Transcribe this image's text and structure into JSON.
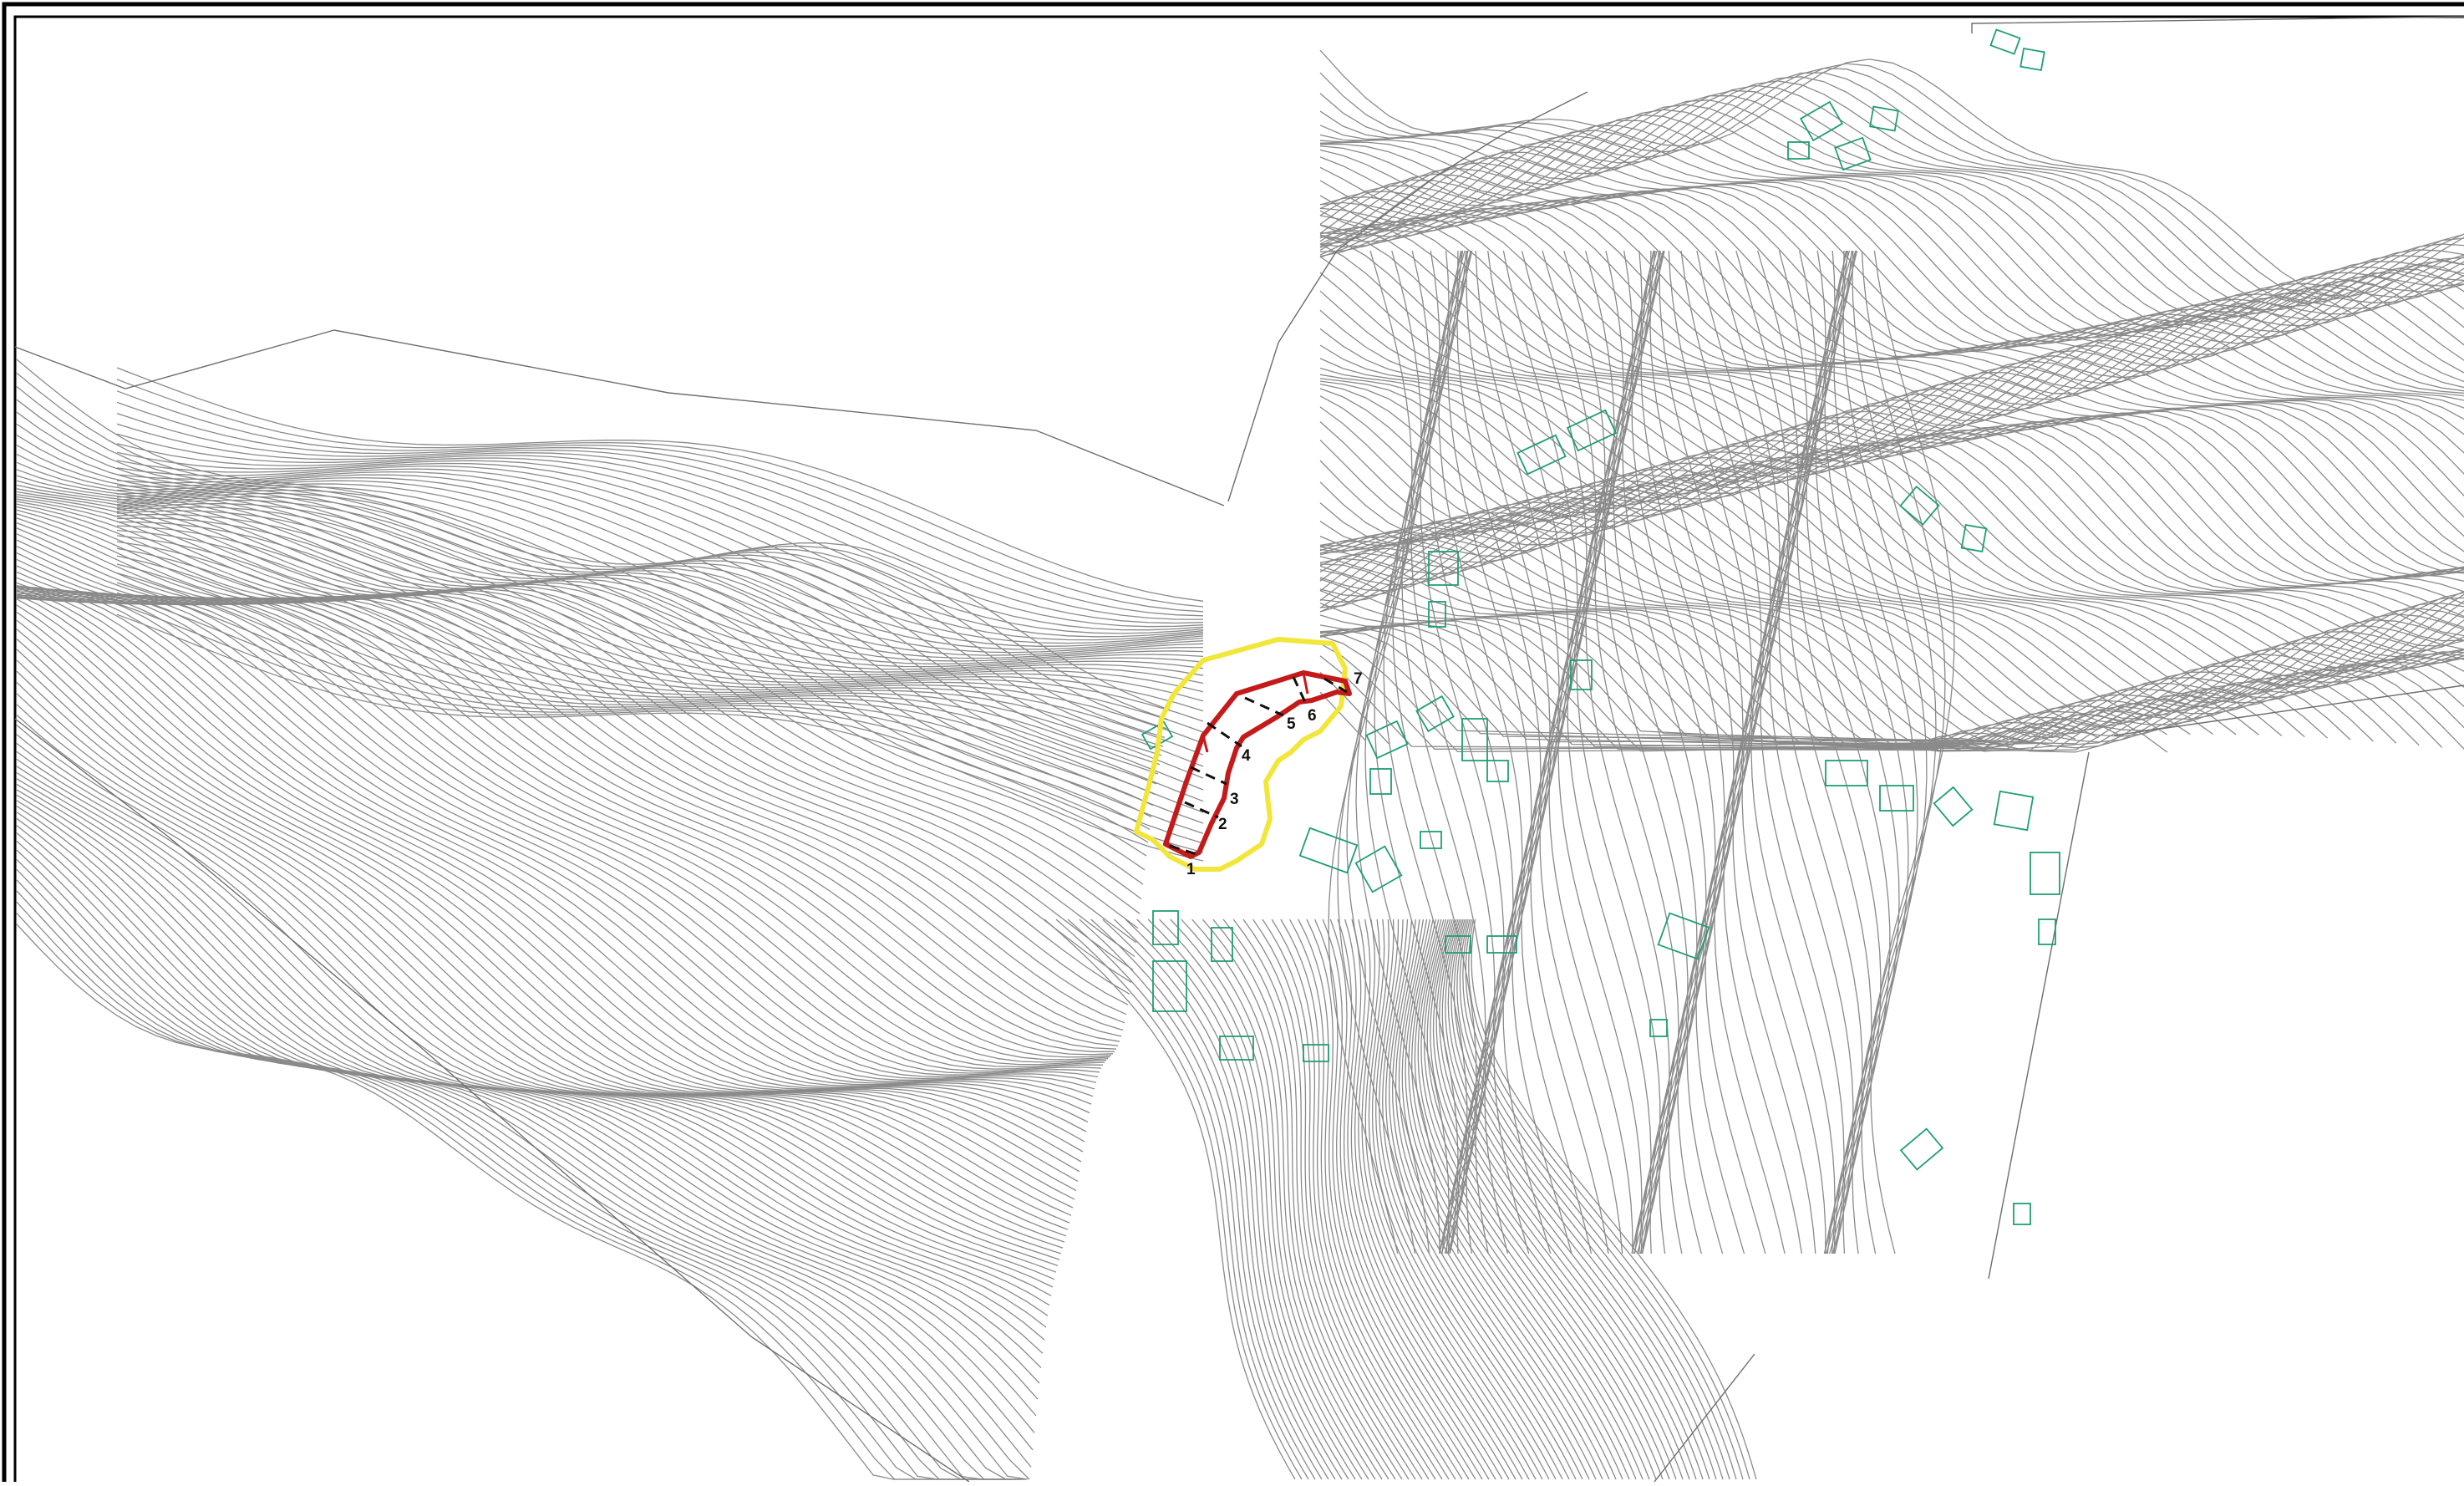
{
  "drawing": {
    "type": "topographic site plan",
    "colors": {
      "contour": "#8a8a8a",
      "building": "#1f9e77",
      "site_boundary": "#c41a1a",
      "buffer_zone": "#f2e63a",
      "section_line": "#111111",
      "frame": "#000000"
    },
    "section_markers": [
      {
        "label": "1"
      },
      {
        "label": "2"
      },
      {
        "label": "3"
      },
      {
        "label": "4"
      },
      {
        "label": "5"
      },
      {
        "label": "6"
      },
      {
        "label": "7"
      }
    ]
  }
}
